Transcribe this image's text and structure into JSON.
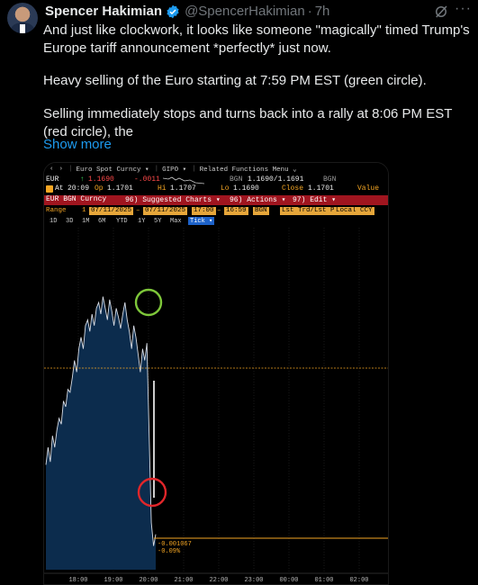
{
  "tweet": {
    "author_name": "Spencer Hakimian",
    "handle": "@SpencerHakimian",
    "separator": "·",
    "time": "7h",
    "paragraph1": "And just like clockwork, it looks like someone \"magically\" timed Trump's Europe tariff announcement *perfectly* just now.",
    "paragraph2": "Heavy selling of the Euro starting at 7:59 PM EST (green circle).",
    "paragraph3": "Selling immediately stops and turns back into a rally at 8:06 PM EST (red circle), the",
    "show_more": "Show more"
  },
  "terminal": {
    "toolbar": {
      "back": "‹",
      "forward": "›",
      "tab1": "Euro Spot Curncy ▾",
      "tab2": "GIPO ▾",
      "tab3": "Related Functions Menu ⌄"
    },
    "quote": {
      "ticker": "EUR",
      "last_arrow": "↑",
      "last": "1.1690",
      "change": "-.0011",
      "source": "BGN",
      "bid_ask": "1.1690/1.1691",
      "source2": "BGN",
      "at_label": "At",
      "at_time": "20:09",
      "op_label": "Op",
      "op": "1.1701",
      "hi_label": "Hi",
      "hi": "1.1707",
      "lo_label": "Lo",
      "lo": "1.1690",
      "close_label": "Close",
      "close": "1.1701",
      "value_label": "Value"
    },
    "menu": {
      "security": "EUR BGN Curncy",
      "suggested": "96) Suggested Charts ▾",
      "actions": "96) Actions ▾",
      "edit": "97) Edit ▾"
    },
    "range": {
      "label": "Range",
      "one": "1",
      "start_date": "07/11/2025",
      "end_date": "07/11/2025",
      "start_time": "17:00",
      "end_time": "16:59",
      "source": "BGN",
      "price_type": "Lst Trd/Lst Pr",
      "ccy": "Local CCY"
    },
    "timeframes": [
      "1D",
      "3D",
      "1M",
      "6M",
      "YTD",
      "1Y",
      "5Y",
      "Max"
    ],
    "tick_label": "Tick ▾",
    "colors": {
      "accent_orange": "#f5a623",
      "menu_red": "#a0151f",
      "area_fill": "#0c2c4d",
      "green_circle": "#7ec73a",
      "red_circle": "#e0262a"
    }
  },
  "chart_data": {
    "type": "area",
    "title": "",
    "xlabel": "",
    "ylabel": "",
    "x_ticks": [
      "18:00",
      "19:00",
      "20:00",
      "21:00",
      "22:00",
      "23:00",
      "00:00",
      "01:00",
      "02:00"
    ],
    "annotation_change": "-0.001067",
    "annotation_pct": "-0.09%",
    "series": [
      {
        "values": [
          0.3,
          0.36,
          0.31,
          0.4,
          0.36,
          0.42,
          0.46,
          0.44,
          0.52,
          0.5,
          0.56,
          0.55,
          0.6,
          0.66,
          0.62,
          0.7,
          0.74,
          0.7,
          0.78,
          0.8,
          0.76,
          0.82,
          0.78,
          0.84,
          0.86,
          0.82,
          0.88,
          0.84,
          0.8,
          0.87,
          0.83,
          0.78,
          0.84,
          0.81,
          0.77,
          0.82,
          0.86,
          0.8,
          0.76,
          0.7,
          0.78,
          0.74,
          0.68,
          0.62,
          0.7,
          0.66,
          0.72,
          0.4,
          0.1,
          0.02,
          0.06
        ]
      }
    ]
  }
}
